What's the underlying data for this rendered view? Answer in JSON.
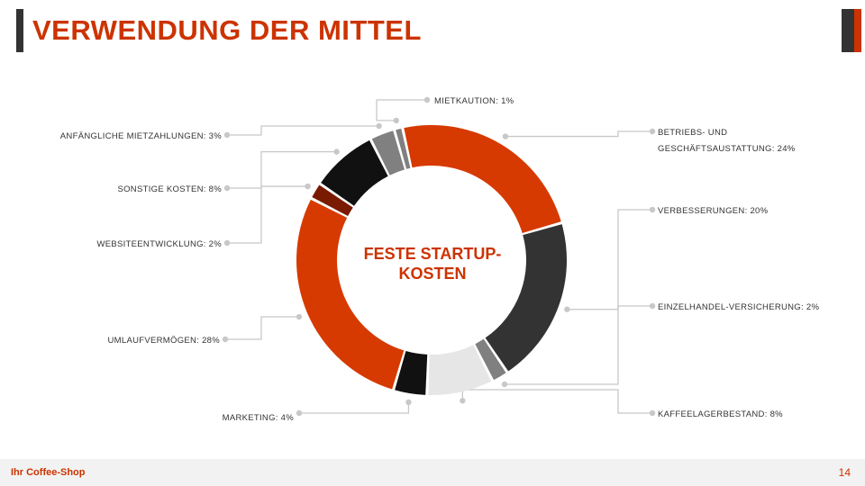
{
  "slide": {
    "title": "VERWENDUNG DER MITTEL",
    "footer_company": "Ihr Coffee-Shop",
    "page_number": "14"
  },
  "colors": {
    "accent": "#cc3300",
    "dark": "#333333",
    "orange": "#d63a00",
    "black": "#111111",
    "gray": "#808080",
    "light_gray": "#e6e6e6",
    "brown": "#7a1a00",
    "leader": "#c8c8c8"
  },
  "chart_data": {
    "type": "pie",
    "style": "donut",
    "title": "",
    "center_label_lines": [
      "FESTE STARTUP-",
      "KOSTEN"
    ],
    "unit": "%",
    "categories": [
      "MIETKAUTION",
      "BETRIEBS- UND GESCHÄFTSAUSTATTUNG",
      "VERBESSERUNGEN",
      "EINZELHANDEL-VERSICHERUNG",
      "KAFFEELAGERBESTAND",
      "MARKETING",
      "UMLAUFVERMÖGEN",
      "WEBSITEENTWICKLUNG",
      "SONSTIGE KOSTEN",
      "ANFÄNGLICHE MIETZAHLUNGEN"
    ],
    "values": [
      1,
      24,
      20,
      2,
      8,
      4,
      28,
      2,
      8,
      3
    ],
    "label_lines": [
      [
        "MIETKAUTION: 1%"
      ],
      [
        "BETRIEBS- UND",
        "GESCHÄFTSAUSTATTUNG: 24%"
      ],
      [
        "VERBESSERUNGEN: 20%"
      ],
      [
        "EINZELHANDEL-VERSICHERUNG: 2%"
      ],
      [
        "KAFFEELAGERBESTAND: 8%"
      ],
      [
        "MARKETING: 4%"
      ],
      [
        "UMLAUFVERMÖGEN: 28%"
      ],
      [
        "WEBSITEENTWICKLUNG: 2%"
      ],
      [
        "SONSTIGE KOSTEN: 8%"
      ],
      [
        "ANFÄNGLICHE MIETZAHLUNGEN: 3%"
      ]
    ],
    "colors": [
      "#808080",
      "#d63a00",
      "#333333",
      "#808080",
      "#e6e6e6",
      "#111111",
      "#d63a00",
      "#7a1a00",
      "#111111",
      "#808080"
    ],
    "legend": "none"
  }
}
